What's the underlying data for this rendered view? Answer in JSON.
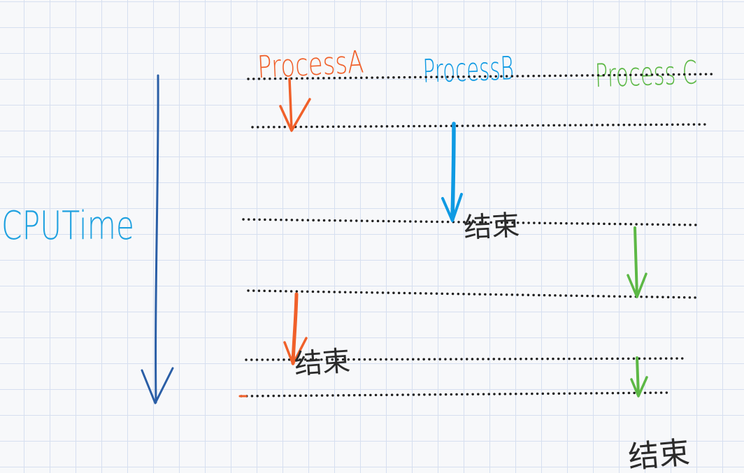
{
  "axis": {
    "label": "CPUTime",
    "color": "#2a5ea6",
    "label_color": "#1fa1e0"
  },
  "processes": [
    {
      "id": "a",
      "name": "ProcessA",
      "color": "#f0602a"
    },
    {
      "id": "b",
      "name": "ProcessB",
      "color": "#0f9ae3"
    },
    {
      "id": "c",
      "name": "Process C",
      "color": "#5cb845"
    }
  ],
  "end_label": "结束",
  "end_label_color": "#2b2b2b",
  "line_color": "#1c1c1c"
}
